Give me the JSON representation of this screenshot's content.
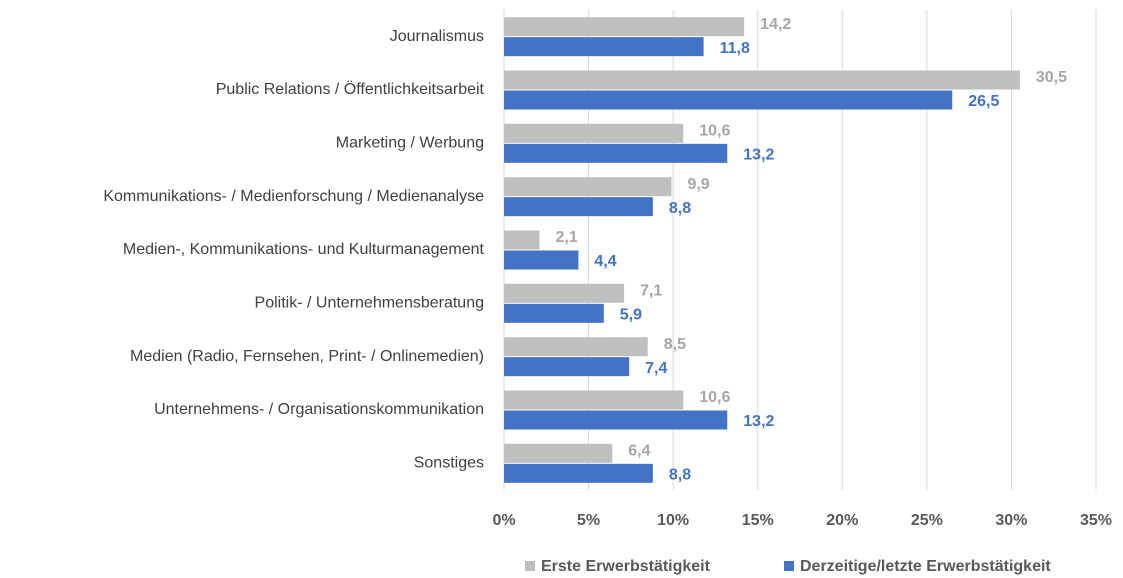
{
  "chart_data": {
    "type": "bar",
    "orientation": "horizontal",
    "categories": [
      "Journalismus",
      "Public Relations / Öffentlichkeitsarbeit",
      "Marketing / Werbung",
      "Kommunikations- / Medienforschung / Medienanalyse",
      "Medien-, Kommunikations- und Kulturmanagement",
      "Politik- / Unternehmensberatung",
      "Medien (Radio, Fernsehen, Print- / Onlinemedien)",
      "Unternehmens- / Organisationskommunikation",
      "Sonstiges"
    ],
    "series": [
      {
        "name": "Erste Erwerbstätigkeit",
        "color": "#bfbfbf",
        "label_color": "#a6a6a6",
        "values": [
          14.2,
          30.5,
          10.6,
          9.9,
          2.1,
          7.1,
          8.5,
          10.6,
          6.4
        ],
        "value_labels": [
          "14,2",
          "30,5",
          "10,6",
          "9,9",
          "2,1",
          "7,1",
          "8,5",
          "10,6",
          "6,4"
        ]
      },
      {
        "name": "Derzeitige/letzte Erwerbstätigkeit",
        "color": "#4472c4",
        "label_color": "#4472c4",
        "values": [
          11.8,
          26.5,
          13.2,
          8.8,
          4.4,
          5.9,
          7.4,
          13.2,
          8.8
        ],
        "value_labels": [
          "11,8",
          "26,5",
          "13,2",
          "8,8",
          "4,4",
          "5,9",
          "7,4",
          "13,2",
          "8,8"
        ]
      }
    ],
    "xlim": [
      0,
      35
    ],
    "xticks": [
      {
        "value": 0,
        "label": "0%"
      },
      {
        "value": 5,
        "label": "5%"
      },
      {
        "value": 10,
        "label": "10%"
      },
      {
        "value": 15,
        "label": "15%"
      },
      {
        "value": 20,
        "label": "20%"
      },
      {
        "value": 25,
        "label": "25%"
      },
      {
        "value": 30,
        "label": "30%"
      },
      {
        "value": 35,
        "label": "35%"
      }
    ],
    "grid": true,
    "legend": "bottom"
  }
}
